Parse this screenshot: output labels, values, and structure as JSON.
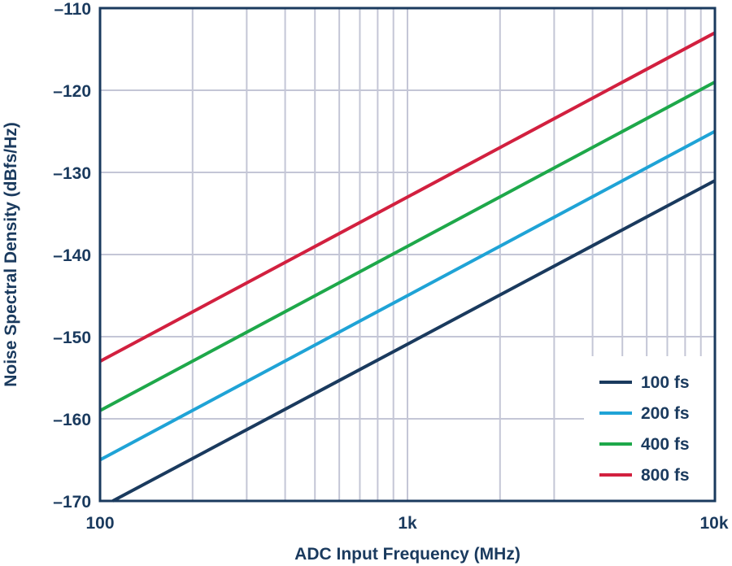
{
  "chart_data": {
    "type": "line",
    "x_scale": "log",
    "xlim": [
      100,
      10000
    ],
    "ylim": [
      -170,
      -110
    ],
    "xlabel": "ADC Input Frequency (MHz)",
    "ylabel": "Noise Spectral Density (dBfs/Hz)",
    "x_ticks": [
      {
        "value": 100,
        "label": "100"
      },
      {
        "value": 1000,
        "label": "1k"
      },
      {
        "value": 10000,
        "label": "10k"
      }
    ],
    "y_ticks": [
      {
        "value": -110,
        "label": "–110"
      },
      {
        "value": -120,
        "label": "–120"
      },
      {
        "value": -130,
        "label": "–130"
      },
      {
        "value": -140,
        "label": "–140"
      },
      {
        "value": -150,
        "label": "–150"
      },
      {
        "value": -160,
        "label": "–160"
      },
      {
        "value": -170,
        "label": "–170"
      }
    ],
    "grid": true,
    "legend_position": "bottom-right",
    "series": [
      {
        "name": "100 fs",
        "color": "#1a3a5e",
        "points": [
          [
            110,
            -170
          ],
          [
            10000,
            -131
          ]
        ]
      },
      {
        "name": "200 fs",
        "color": "#1fa3d6",
        "points": [
          [
            100,
            -165
          ],
          [
            10000,
            -125
          ]
        ]
      },
      {
        "name": "400 fs",
        "color": "#1ea84a",
        "points": [
          [
            100,
            -159
          ],
          [
            10000,
            -119
          ]
        ]
      },
      {
        "name": "800 fs",
        "color": "#d2203f",
        "points": [
          [
            100,
            -153
          ],
          [
            10000,
            -113
          ]
        ]
      }
    ],
    "colors": {
      "frame": "#1a3a5e",
      "grid": "#c4c6d6",
      "text": "#1a3a5e"
    }
  }
}
